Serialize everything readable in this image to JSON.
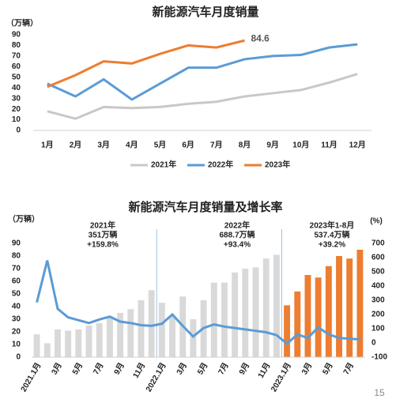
{
  "chart_data": [
    {
      "type": "line",
      "title": "新能源汽车月度销量",
      "y_label": "（万辆）",
      "categories": [
        "1月",
        "2月",
        "3月",
        "4月",
        "5月",
        "6月",
        "7月",
        "8月",
        "9月",
        "10月",
        "11月",
        "12月"
      ],
      "series": [
        {
          "name": "2021年",
          "color": "#c8c8c8",
          "values": [
            18,
            11,
            22,
            21,
            22,
            25,
            27,
            32,
            35,
            38,
            45,
            53
          ]
        },
        {
          "name": "2022年",
          "color": "#5b9bd5",
          "values": [
            44,
            32,
            48,
            29,
            44,
            59,
            59,
            67,
            70,
            71,
            78,
            81
          ]
        },
        {
          "name": "2023年",
          "color": "#ed7d31",
          "values": [
            41,
            52,
            65,
            63,
            72,
            80,
            78,
            84.6,
            null,
            null,
            null,
            null
          ]
        }
      ],
      "annotations": [
        "84.6"
      ],
      "ylim": [
        0,
        90
      ],
      "yticks": [
        0,
        10,
        20,
        30,
        40,
        50,
        60,
        70,
        80,
        90
      ],
      "legend": "bottom"
    },
    {
      "type": "combo",
      "title": "新能源汽车月度销量及增长率",
      "y_label": "（万辆）",
      "y2_label": "(%)",
      "categories": [
        "2021.1月",
        null,
        "3月",
        null,
        "5月",
        null,
        "7月",
        null,
        "9月",
        null,
        "11月",
        null,
        "2022.1月",
        null,
        "3月",
        null,
        "5月",
        null,
        "7月",
        null,
        "9月",
        null,
        "11月",
        null,
        "2023.1月",
        null,
        "3月",
        null,
        "5月",
        null,
        "7月",
        null
      ],
      "series": [
        {
          "type": "bar",
          "values": [
            18,
            11,
            22,
            21,
            22,
            25,
            27,
            32,
            35,
            38,
            45,
            53,
            43,
            33,
            48,
            30,
            45,
            59,
            59,
            67,
            70,
            71,
            78,
            81,
            41,
            52,
            65,
            63,
            72,
            80,
            78,
            85
          ],
          "colors": [
            "#d9d9d9",
            "#d9d9d9",
            "#d9d9d9",
            "#d9d9d9",
            "#d9d9d9",
            "#d9d9d9",
            "#d9d9d9",
            "#d9d9d9",
            "#d9d9d9",
            "#d9d9d9",
            "#d9d9d9",
            "#d9d9d9",
            "#d9d9d9",
            "#d9d9d9",
            "#d9d9d9",
            "#d9d9d9",
            "#d9d9d9",
            "#d9d9d9",
            "#d9d9d9",
            "#d9d9d9",
            "#d9d9d9",
            "#d9d9d9",
            "#d9d9d9",
            "#d9d9d9",
            "#ed7d31",
            "#ed7d31",
            "#ed7d31",
            "#ed7d31",
            "#ed7d31",
            "#ed7d31",
            "#ed7d31",
            "#ed7d31"
          ]
        },
        {
          "type": "line",
          "axis": "y2",
          "color": "#5b9bd5",
          "values": [
            285,
            580,
            240,
            180,
            160,
            140,
            165,
            185,
            150,
            140,
            125,
            120,
            135,
            200,
            120,
            45,
            105,
            130,
            115,
            105,
            95,
            85,
            75,
            55,
            -5,
            60,
            35,
            110,
            60,
            35,
            30,
            25
          ]
        }
      ],
      "annotations": [
        [
          "2021年",
          "351万辆",
          "+159.8%"
        ],
        [
          "2022年",
          "688.7万辆",
          "+93.4%"
        ],
        [
          "2023年1-8月",
          "537.4万辆",
          "+39.2%"
        ]
      ],
      "ylim": [
        0,
        90
      ],
      "yticks": [
        0,
        10,
        20,
        30,
        40,
        50,
        60,
        70,
        80,
        90
      ],
      "y2lim": [
        -100,
        700
      ],
      "y2ticks": [
        -100,
        0,
        100,
        200,
        300,
        400,
        500,
        600,
        700
      ]
    }
  ],
  "page_number": "15"
}
